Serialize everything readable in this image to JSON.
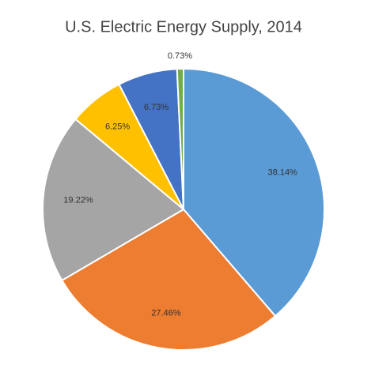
{
  "chart_data": {
    "type": "pie",
    "title": "U.S. Electric Energy Supply, 2014",
    "values": [
      38.14,
      27.46,
      19.22,
      6.25,
      6.73,
      0.73
    ],
    "value_labels": [
      "38.14%",
      "27.46%",
      "19.22%",
      "6.25%",
      "6.73%",
      "0.73%"
    ],
    "colors": [
      "#5b9bd5",
      "#ed7d31",
      "#a5a5a5",
      "#ffc000",
      "#4472c4",
      "#70ad47"
    ]
  }
}
